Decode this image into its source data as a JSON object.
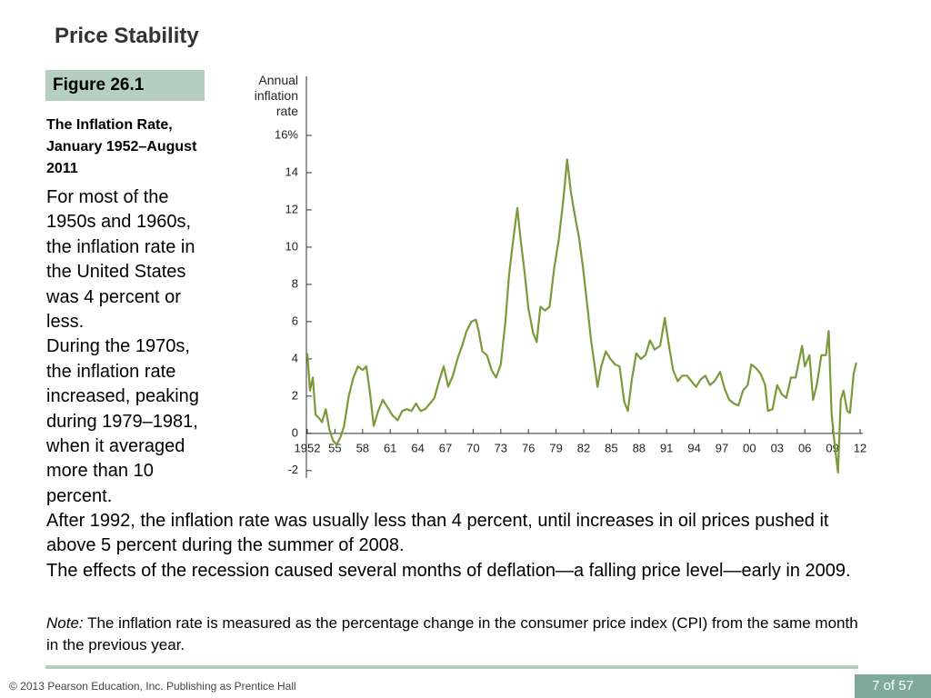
{
  "header": {
    "title": "Price Stability"
  },
  "figure": {
    "label": "Figure 26.1",
    "caption": "The Inflation Rate, January 1952–August 2011"
  },
  "body": {
    "side_paragraphs": [
      "For most of the 1950s and 1960s, the inflation rate in the United States was 4 percent or less.",
      "During the 1970s, the inflation rate increased, peaking during 1979–1981, when it averaged more than 10 percent."
    ],
    "paragraphs": [
      "After 1992, the inflation rate was usually less than 4 percent, until increases in oil prices pushed it above 5 percent during the summer of 2008.",
      "The effects of the recession caused several months of deflation—a falling price level—early in 2009."
    ],
    "note_label": "Note:",
    "note": "The inflation rate is measured as the percentage change in the consumer price index (CPI) from the same month in the previous year."
  },
  "footer": {
    "copyright": "© 2013 Pearson Education, Inc. Publishing as Prentice Hall",
    "page": "7 of 57"
  },
  "chart_data": {
    "type": "line",
    "y_label": "Annual inflation rate",
    "color": "#7a9a3a",
    "xlim": [
      1952,
      2012
    ],
    "ylim": [
      -2.4,
      16
    ],
    "xticks": [
      1952,
      {
        "value": 1955,
        "label": "55"
      },
      {
        "value": 1958,
        "label": "58"
      },
      {
        "value": 1961,
        "label": "61"
      },
      {
        "value": 1964,
        "label": "64"
      },
      {
        "value": 1967,
        "label": "67"
      },
      {
        "value": 1970,
        "label": "70"
      },
      {
        "value": 1973,
        "label": "73"
      },
      {
        "value": 1976,
        "label": "76"
      },
      {
        "value": 1979,
        "label": "79"
      },
      {
        "value": 1982,
        "label": "82"
      },
      {
        "value": 1985,
        "label": "85"
      },
      {
        "value": 1988,
        "label": "88"
      },
      {
        "value": 1991,
        "label": "91"
      },
      {
        "value": 1994,
        "label": "94"
      },
      {
        "value": 1997,
        "label": "97"
      },
      {
        "value": 2000,
        "label": "00"
      },
      {
        "value": 2003,
        "label": "03"
      },
      {
        "value": 2006,
        "label": "06"
      },
      {
        "value": 2009,
        "label": "09"
      },
      {
        "value": 2012,
        "label": "12"
      }
    ],
    "yticks": [
      -2,
      0,
      2,
      4,
      6,
      8,
      10,
      12,
      14,
      {
        "value": 16,
        "label": "16%"
      }
    ],
    "x": [
      1952.0,
      1952.3,
      1952.6,
      1952.9,
      1953.3,
      1953.6,
      1954.0,
      1954.4,
      1954.8,
      1955.2,
      1955.6,
      1956.0,
      1956.5,
      1957.0,
      1957.5,
      1958.0,
      1958.4,
      1958.8,
      1959.2,
      1959.7,
      1960.2,
      1960.7,
      1961.2,
      1961.8,
      1962.3,
      1962.8,
      1963.3,
      1963.8,
      1964.3,
      1964.8,
      1965.3,
      1965.8,
      1966.3,
      1966.8,
      1967.3,
      1967.8,
      1968.3,
      1968.8,
      1969.3,
      1969.8,
      1970.3,
      1970.6,
      1971.0,
      1971.5,
      1972.0,
      1972.5,
      1973.0,
      1973.5,
      1973.9,
      1974.3,
      1974.8,
      1975.2,
      1975.6,
      1976.0,
      1976.5,
      1976.9,
      1977.3,
      1977.8,
      1978.3,
      1978.8,
      1979.3,
      1979.8,
      1980.2,
      1980.6,
      1981.0,
      1981.5,
      1981.9,
      1982.4,
      1982.8,
      1983.2,
      1983.5,
      1983.9,
      1984.4,
      1984.9,
      1985.4,
      1985.9,
      1986.4,
      1986.8,
      1987.2,
      1987.7,
      1988.2,
      1988.7,
      1989.2,
      1989.7,
      1990.3,
      1990.8,
      1991.2,
      1991.7,
      1992.2,
      1992.7,
      1993.2,
      1993.7,
      1994.2,
      1994.7,
      1995.2,
      1995.7,
      1996.2,
      1996.8,
      1997.3,
      1997.8,
      1998.3,
      1998.8,
      1999.3,
      1999.8,
      2000.2,
      2000.7,
      2001.2,
      2001.7,
      2002.0,
      2002.5,
      2003.0,
      2003.5,
      2004.0,
      2004.5,
      2005.0,
      2005.7,
      2006.0,
      2006.5,
      2006.9,
      2007.3,
      2007.8,
      2008.3,
      2008.6,
      2008.9,
      2009.2,
      2009.6,
      2009.9,
      2010.2,
      2010.6,
      2010.9,
      2011.3,
      2011.6
    ],
    "values": [
      4.3,
      2.3,
      3.0,
      1.0,
      0.8,
      0.6,
      1.3,
      0.2,
      -0.4,
      -0.6,
      -0.2,
      0.4,
      2.0,
      3.0,
      3.6,
      3.4,
      3.6,
      2.2,
      0.4,
      1.2,
      1.8,
      1.4,
      1.0,
      0.7,
      1.2,
      1.3,
      1.2,
      1.6,
      1.2,
      1.3,
      1.6,
      1.9,
      2.8,
      3.6,
      2.5,
      3.1,
      4.0,
      4.7,
      5.5,
      6.0,
      6.1,
      5.5,
      4.4,
      4.2,
      3.4,
      3.0,
      3.7,
      6.0,
      8.5,
      10.2,
      12.1,
      10.2,
      8.6,
      6.7,
      5.4,
      4.9,
      6.8,
      6.6,
      6.8,
      8.9,
      10.4,
      12.6,
      14.7,
      13.0,
      11.8,
      10.5,
      9.0,
      6.8,
      5.0,
      3.6,
      2.5,
      3.6,
      4.4,
      4.0,
      3.7,
      3.6,
      1.7,
      1.2,
      2.8,
      4.3,
      4.0,
      4.2,
      5.0,
      4.5,
      4.7,
      6.2,
      4.9,
      3.4,
      2.8,
      3.1,
      3.1,
      2.8,
      2.5,
      2.9,
      3.1,
      2.6,
      2.8,
      3.3,
      2.4,
      1.8,
      1.6,
      1.5,
      2.3,
      2.6,
      3.7,
      3.5,
      3.2,
      2.6,
      1.2,
      1.3,
      2.6,
      2.1,
      1.9,
      3.0,
      3.0,
      4.7,
      3.6,
      4.2,
      1.8,
      2.6,
      4.2,
      4.2,
      5.5,
      1.1,
      -0.4,
      -2.1,
      1.8,
      2.3,
      1.2,
      1.1,
      3.2,
      3.8
    ]
  }
}
